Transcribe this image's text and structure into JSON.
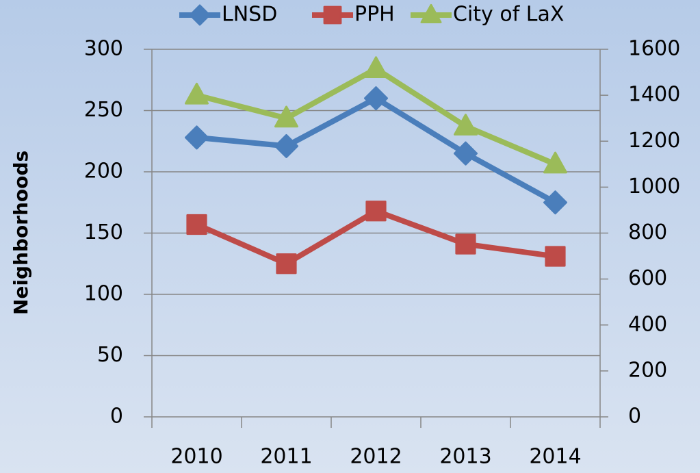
{
  "chart_data": {
    "type": "line",
    "y_axis_label": "Neighborhoods",
    "categories": [
      "2010",
      "2011",
      "2012",
      "2013",
      "2014"
    ],
    "series": [
      {
        "name": "LNSD",
        "color": "#4a7ebb",
        "marker": "diamond",
        "values": [
          228,
          221,
          260,
          215,
          175
        ]
      },
      {
        "name": "PPH",
        "color": "#be4b48",
        "marker": "square",
        "values": [
          157,
          125,
          168,
          141,
          131
        ]
      },
      {
        "name": "City of LaX",
        "color": "#9bbb59",
        "marker": "triangle",
        "axis": "y2",
        "values": [
          1400,
          1300,
          1515,
          1265,
          1100
        ]
      }
    ],
    "ylim": [
      0,
      300
    ],
    "yticks": [
      0,
      50,
      100,
      150,
      200,
      250,
      300
    ],
    "y2lim": [
      0,
      1600
    ],
    "y2ticks": [
      0,
      200,
      400,
      600,
      800,
      1000,
      1200,
      1400,
      1600
    ],
    "grid": true,
    "legend": "top"
  }
}
